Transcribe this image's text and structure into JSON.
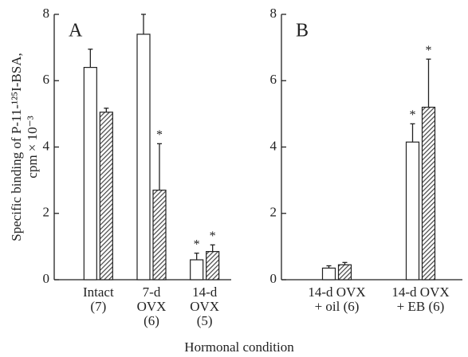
{
  "xlabel": "Hormonal condition",
  "chart_data": [
    {
      "type": "bar",
      "panel_label": "A",
      "ylabel": [
        "Specific binding of P-11-¹²⁵I-BSA,",
        "cpm × 10⁻³"
      ],
      "categories": [
        [
          "Intact",
          "(7)"
        ],
        [
          "7-d",
          "OVX",
          "(6)"
        ],
        [
          "14-d",
          "OVX",
          "(5)"
        ]
      ],
      "series": [
        {
          "color": "#ffffff",
          "values": [
            6.4,
            7.4,
            0.6
          ],
          "errors": [
            0.55,
            0.6,
            0.2
          ],
          "annotations": [
            null,
            null,
            "*"
          ]
        },
        {
          "color": "#555555",
          "pattern": "hatch",
          "values": [
            5.05,
            2.7,
            0.85
          ],
          "errors": [
            0.12,
            1.4,
            0.2
          ],
          "annotations": [
            null,
            "*",
            "*"
          ]
        }
      ],
      "ylim": [
        0,
        8
      ],
      "yticks": [
        0,
        2,
        4,
        6,
        8
      ]
    },
    {
      "type": "bar",
      "panel_label": "B",
      "categories": [
        [
          "14-d OVX",
          "+ oil (6)"
        ],
        [
          "14-d OVX",
          "+ EB (6)"
        ]
      ],
      "series": [
        {
          "color": "#ffffff",
          "values": [
            0.35,
            4.15
          ],
          "errors": [
            0.07,
            0.55
          ],
          "annotations": [
            null,
            "*"
          ]
        },
        {
          "color": "#555555",
          "pattern": "hatch",
          "values": [
            0.45,
            5.2
          ],
          "errors": [
            0.07,
            1.45
          ],
          "annotations": [
            null,
            "*"
          ]
        }
      ],
      "ylim": [
        0,
        8
      ],
      "yticks": [
        0,
        2,
        4,
        6,
        8
      ]
    }
  ]
}
